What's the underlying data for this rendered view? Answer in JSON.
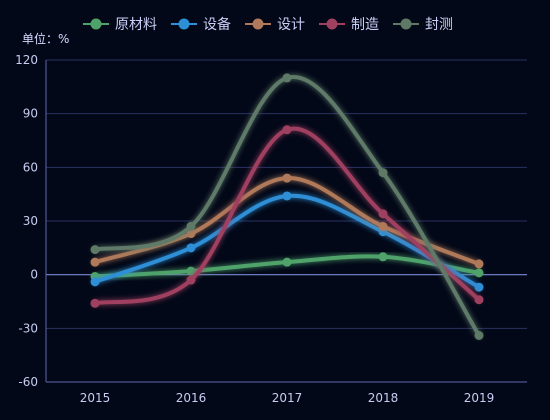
{
  "chart_data": {
    "type": "line",
    "smooth": true,
    "unit_label": "单位：%",
    "x": [
      "2015",
      "2016",
      "2017",
      "2018",
      "2019"
    ],
    "ylim": [
      -60,
      120
    ],
    "yticks": [
      -60,
      -30,
      0,
      30,
      60,
      90,
      120
    ],
    "grid": true,
    "legend_position": "top-center",
    "series": [
      {
        "name": "原材料",
        "color": "#4fa36a",
        "values": [
          -1,
          2,
          7,
          10,
          1
        ]
      },
      {
        "name": "设备",
        "color": "#2f8fd6",
        "values": [
          -4,
          15,
          44,
          24,
          -7
        ]
      },
      {
        "name": "设计",
        "color": "#b07a5a",
        "values": [
          7,
          23,
          54,
          27,
          6
        ]
      },
      {
        "name": "制造",
        "color": "#a04060",
        "values": [
          -16,
          -3,
          81,
          34,
          -14
        ]
      },
      {
        "name": "封测",
        "color": "#5e7a67",
        "values": [
          14,
          27,
          110,
          57,
          -34
        ]
      }
    ]
  }
}
